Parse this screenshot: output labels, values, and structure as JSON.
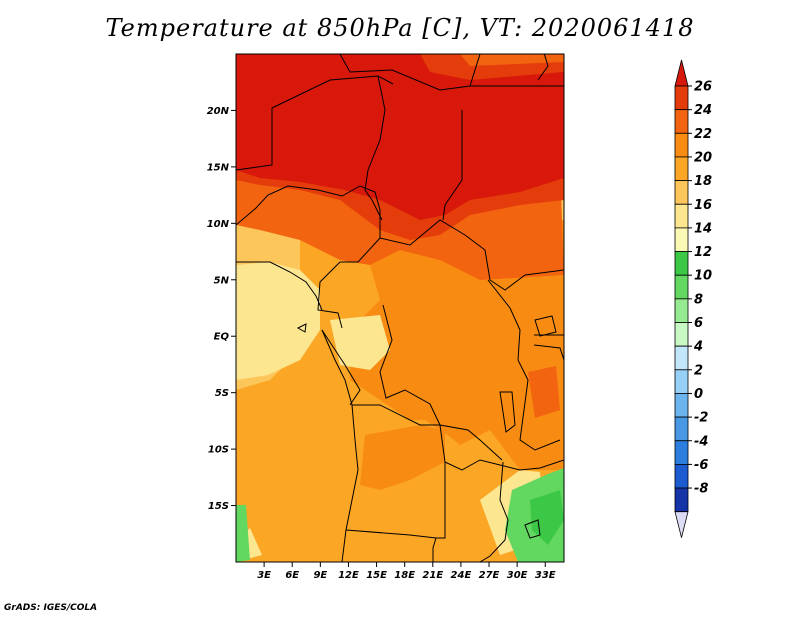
{
  "title": "Temperature at 850hPa [C], VT: 2020061418",
  "credit": "GrADS: IGES/COLA",
  "map": {
    "lon_range": [
      0,
      35
    ],
    "lat_range": [
      -20,
      25
    ],
    "lat_ticks": [
      {
        "value": 20,
        "label": "20N"
      },
      {
        "value": 15,
        "label": "15N"
      },
      {
        "value": 10,
        "label": "10N"
      },
      {
        "value": 5,
        "label": "5N"
      },
      {
        "value": 0,
        "label": "EQ"
      },
      {
        "value": -5,
        "label": "5S"
      },
      {
        "value": -10,
        "label": "10S"
      },
      {
        "value": -15,
        "label": "15S"
      }
    ],
    "lon_ticks": [
      {
        "value": 3,
        "label": "3E"
      },
      {
        "value": 6,
        "label": "6E"
      },
      {
        "value": 9,
        "label": "9E"
      },
      {
        "value": 12,
        "label": "12E"
      },
      {
        "value": 15,
        "label": "15E"
      },
      {
        "value": 18,
        "label": "18E"
      },
      {
        "value": 21,
        "label": "21E"
      },
      {
        "value": 24,
        "label": "24E"
      },
      {
        "value": 27,
        "label": "27E"
      },
      {
        "value": 30,
        "label": "30E"
      },
      {
        "value": 33,
        "label": "33E"
      }
    ]
  },
  "colorbar": {
    "levels": [
      "26",
      "24",
      "22",
      "20",
      "18",
      "16",
      "14",
      "12",
      "10",
      "8",
      "6",
      "4",
      "2",
      "0",
      "-2",
      "-4",
      "-6",
      "-8"
    ],
    "top_color": "#d8180a",
    "colors": [
      "#e43c0a",
      "#f26410",
      "#f88c12",
      "#fca626",
      "#fcc65a",
      "#fce690",
      "#fcf8b6",
      "#3cc846",
      "#62d860",
      "#96ea92",
      "#c8f8c4",
      "#c2e6fa",
      "#96d0f6",
      "#6cb4ee",
      "#4898e4",
      "#2c7ede",
      "#1c5cd0",
      "#1434a8"
    ],
    "bottom_color": "#dcdcf4"
  }
}
